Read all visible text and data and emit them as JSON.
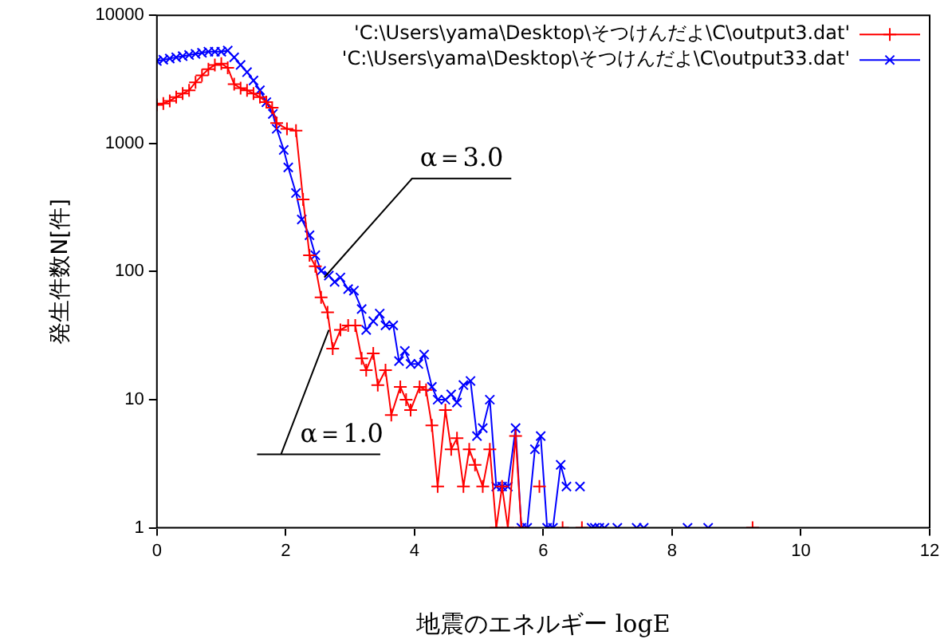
{
  "chart_data": {
    "type": "line",
    "xlabel": "地震のエネルギー logE",
    "ylabel": "発生件数N[件]",
    "log": "y",
    "grid": false,
    "legend": "top right",
    "line_style": "solid",
    "xlim": [
      0,
      12
    ],
    "xticks": [
      0,
      2,
      4,
      6,
      8,
      10,
      12
    ],
    "ylim": [
      1,
      10000
    ],
    "yticks": [
      1,
      10,
      100,
      1000,
      10000
    ],
    "series": [
      {
        "name": "'C:\\Users\\yama\\Desktop\\そつけんだよ\\C\\output3.dat'",
        "color": "#ff0000",
        "marker": "cross",
        "x": [
          0,
          0.1,
          0.2,
          0.3,
          0.4,
          0.5,
          0.6,
          0.7,
          0.8,
          0.9,
          1.0,
          1.1,
          1.2,
          1.3,
          1.4,
          1.5,
          1.6,
          1.7,
          1.79,
          1.86,
          2.02,
          2.16,
          2.27,
          2.37,
          2.46,
          2.55,
          2.65,
          2.73,
          2.85,
          2.97,
          3.08,
          3.18,
          3.25,
          3.36,
          3.43,
          3.55,
          3.64,
          3.78,
          3.87,
          3.94,
          4.08,
          4.18,
          4.27,
          4.36,
          4.48,
          4.57,
          4.66,
          4.76,
          4.85,
          4.94,
          5.06,
          5.17,
          5.27,
          5.36,
          5.45,
          5.57,
          5.66,
          5.8,
          5.94,
          6.06,
          6.3,
          6.45,
          6.6,
          8.0,
          9.25
        ],
        "values": [
          2000,
          2050,
          2150,
          2300,
          2450,
          2600,
          3000,
          3400,
          3800,
          4100,
          4200,
          3900,
          2900,
          2700,
          2600,
          2450,
          2300,
          2100,
          1900,
          1440,
          1300,
          1260,
          365,
          134,
          110,
          63,
          48,
          25,
          35,
          38,
          38,
          21,
          17,
          23,
          13,
          17,
          7.6,
          12.6,
          10,
          8.3,
          12.6,
          11.9,
          6.3,
          2.1,
          8.3,
          4.1,
          5,
          2.1,
          4.1,
          3.1,
          2.1,
          4.1,
          1,
          2.1,
          1,
          5.2,
          1,
          null,
          2.1,
          null,
          1,
          null,
          1,
          null,
          1
        ]
      },
      {
        "name": "'C:\\Users\\yama\\Desktop\\そつけんだよ\\C\\output33.dat'",
        "color": "#0000ff",
        "marker": "x",
        "x": [
          0,
          0.1,
          0.2,
          0.3,
          0.4,
          0.5,
          0.6,
          0.7,
          0.8,
          0.9,
          1.0,
          1.1,
          1.2,
          1.3,
          1.4,
          1.5,
          1.6,
          1.7,
          1.8,
          1.86,
          1.97,
          2.04,
          2.16,
          2.25,
          2.37,
          2.46,
          2.55,
          2.67,
          2.76,
          2.85,
          2.97,
          3.06,
          3.18,
          3.25,
          3.36,
          3.46,
          3.55,
          3.67,
          3.76,
          3.85,
          3.94,
          4.06,
          4.15,
          4.27,
          4.36,
          4.48,
          4.57,
          4.66,
          4.76,
          4.87,
          4.97,
          5.06,
          5.17,
          5.27,
          5.36,
          5.45,
          5.57,
          5.66,
          5.75,
          5.87,
          5.96,
          6.06,
          6.15,
          6.27,
          6.36,
          6.45,
          6.57,
          6.66,
          6.75,
          6.78,
          6.8,
          6.84,
          6.87,
          6.91,
          6.95,
          7.05,
          7.15,
          7.3,
          7.45,
          7.5,
          7.56,
          7.9,
          8.24,
          8.4,
          8.56
        ],
        "values": [
          4400,
          4500,
          4600,
          4700,
          4800,
          4900,
          5000,
          5100,
          5200,
          5200,
          5200,
          5300,
          4700,
          4100,
          3600,
          3100,
          2600,
          2100,
          1700,
          1300,
          890,
          650,
          410,
          255,
          192,
          134,
          101,
          93,
          83,
          90,
          73,
          71,
          51,
          35,
          41,
          47,
          38,
          38,
          20,
          24,
          19,
          19,
          22.5,
          12.6,
          10,
          10,
          11,
          9.5,
          13,
          14,
          5.2,
          6,
          10,
          2.1,
          2.1,
          2.1,
          6,
          1,
          1,
          4.1,
          5.2,
          1,
          1,
          3.1,
          2.1,
          null,
          2.1,
          null,
          1,
          null,
          1,
          null,
          1,
          null,
          1,
          null,
          1,
          null,
          1,
          null,
          1,
          null,
          1,
          null,
          1
        ]
      }
    ],
    "annotations": [
      {
        "text": "α＝3.0",
        "x": 2.6,
        "y": 90
      },
      {
        "text": "α＝1.0",
        "x": 2.67,
        "y": 35
      }
    ]
  }
}
